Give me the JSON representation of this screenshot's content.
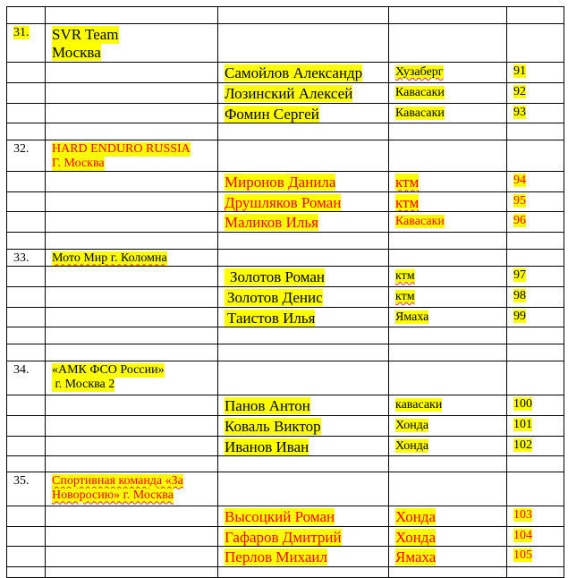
{
  "colors": {
    "highlight": "#ffff00",
    "red_text": "#ff0000",
    "black_text": "#000000"
  },
  "teams": [
    {
      "number": "31.",
      "name_lines": [
        "SVR Team",
        "Москва"
      ],
      "color": "black",
      "large": true,
      "riders": [
        {
          "name": "Самойлов Александр",
          "bike": "Хузаберг",
          "race_number": "91"
        },
        {
          "name": "Лозинский Алексей",
          "bike": "Кавасаки",
          "race_number": "92"
        },
        {
          "name": "Фомин Сергей",
          "bike": "Кавасаки",
          "race_number": "93"
        }
      ]
    },
    {
      "number": "32.",
      "name_lines": [
        "HARD ENDURO RUSSIA",
        "Г. Москва"
      ],
      "color": "red",
      "large": false,
      "riders": [
        {
          "name": "Миронов Данила",
          "bike": "ктм",
          "race_number": "94"
        },
        {
          "name": "Друшляков Роман",
          "bike": "ктм",
          "race_number": "95"
        },
        {
          "name": "Маликов Илья",
          "bike": "Кавасаки",
          "race_number": "96"
        }
      ]
    },
    {
      "number": "33.",
      "name_lines": [
        "Мото Мир г. Коломна"
      ],
      "color": "black",
      "large": false,
      "riders": [
        {
          "name": "Золотов Роман",
          "bike": "ктм",
          "race_number": "97"
        },
        {
          "name": "Золотов Денис",
          "bike": "ктм",
          "race_number": "98"
        },
        {
          "name": "Таистов Илья",
          "bike": "Ямаха",
          "race_number": "99"
        }
      ]
    },
    {
      "number": "34.",
      "name_lines": [
        "«АМК ФСО России»",
        " г. Москва 2"
      ],
      "color": "black",
      "large": false,
      "riders": [
        {
          "name": "Панов Антон",
          "bike": "кавасаки",
          "race_number": "100"
        },
        {
          "name": "Коваль Виктор",
          "bike": "Хонда",
          "race_number": "101"
        },
        {
          "name": "Иванов Иван",
          "bike": "Хонда",
          "race_number": "102"
        }
      ]
    },
    {
      "number": "35.",
      "name_lines": [
        "Спортивная команда «За",
        "Новоросию» г. Москва"
      ],
      "color": "red",
      "large": false,
      "riders": [
        {
          "name": "Высоцкий Роман",
          "bike": "Хонда",
          "race_number": "103"
        },
        {
          "name": "Гафаров Дмитрий",
          "bike": "Хонда",
          "race_number": "104"
        },
        {
          "name": "Перлов Михаил",
          "bike": "Ямаха",
          "race_number": "105"
        }
      ]
    }
  ]
}
